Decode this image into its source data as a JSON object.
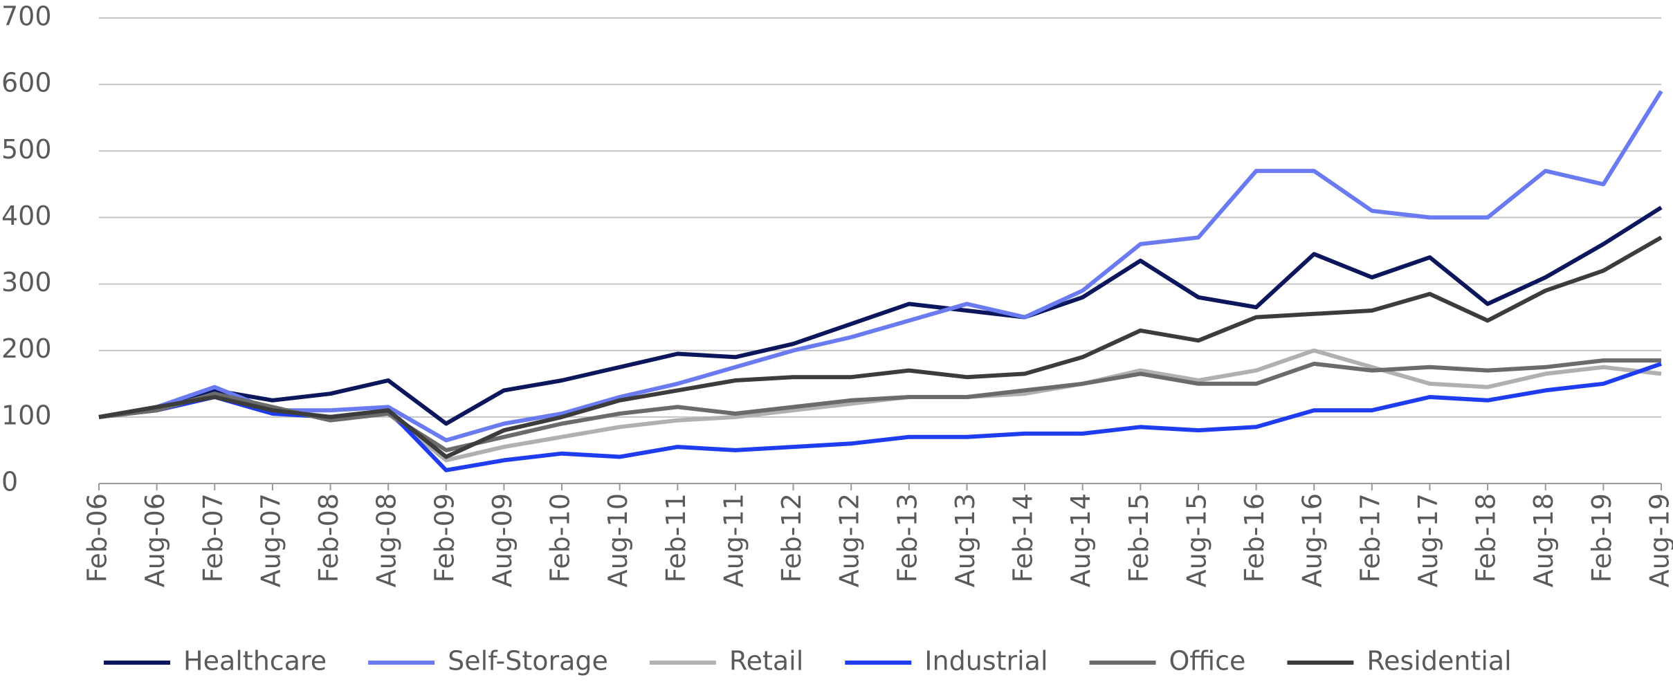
{
  "chart_data": {
    "type": "line",
    "categories": [
      "Feb-06",
      "Aug-06",
      "Feb-07",
      "Aug-07",
      "Feb-08",
      "Aug-08",
      "Feb-09",
      "Aug-09",
      "Feb-10",
      "Aug-10",
      "Feb-11",
      "Aug-11",
      "Feb-12",
      "Aug-12",
      "Feb-13",
      "Aug-13",
      "Feb-14",
      "Aug-14",
      "Feb-15",
      "Aug-15",
      "Feb-16",
      "Aug-16",
      "Feb-17",
      "Aug-17",
      "Feb-18",
      "Aug-18",
      "Feb-19",
      "Aug-19"
    ],
    "series": [
      {
        "name": "Healthcare",
        "color": "#0c165c",
        "values": [
          100,
          115,
          140,
          125,
          135,
          155,
          90,
          140,
          155,
          175,
          195,
          190,
          210,
          240,
          270,
          260,
          250,
          280,
          335,
          280,
          265,
          345,
          310,
          340,
          270,
          310,
          360,
          415
        ]
      },
      {
        "name": "Self-Storage",
        "color": "#6a7af0",
        "values": [
          100,
          115,
          145,
          110,
          110,
          115,
          65,
          90,
          105,
          130,
          150,
          175,
          200,
          220,
          245,
          270,
          250,
          290,
          360,
          370,
          470,
          470,
          410,
          400,
          400,
          470,
          450,
          590
        ]
      },
      {
        "name": "Retail",
        "color": "#b0b0b0",
        "values": [
          100,
          110,
          135,
          110,
          100,
          105,
          35,
          55,
          70,
          85,
          95,
          100,
          110,
          120,
          130,
          130,
          135,
          150,
          170,
          155,
          170,
          200,
          175,
          150,
          145,
          165,
          175,
          165
        ]
      },
      {
        "name": "Industrial",
        "color": "#1e3cf0",
        "values": [
          100,
          110,
          130,
          105,
          100,
          110,
          20,
          35,
          45,
          40,
          55,
          50,
          55,
          60,
          70,
          70,
          75,
          75,
          85,
          80,
          85,
          110,
          110,
          130,
          125,
          140,
          150,
          180
        ]
      },
      {
        "name": "Office",
        "color": "#6b6b6b",
        "values": [
          100,
          110,
          135,
          115,
          95,
          105,
          50,
          70,
          90,
          105,
          115,
          105,
          115,
          125,
          130,
          130,
          140,
          150,
          165,
          150,
          150,
          180,
          170,
          175,
          170,
          175,
          185,
          185
        ]
      },
      {
        "name": "Residential",
        "color": "#3c3c3c",
        "values": [
          100,
          115,
          130,
          110,
          100,
          110,
          40,
          80,
          100,
          125,
          140,
          155,
          160,
          160,
          170,
          160,
          165,
          190,
          230,
          215,
          250,
          255,
          260,
          285,
          245,
          290,
          320,
          370
        ]
      }
    ],
    "ylim": [
      0,
      700
    ],
    "yticks": [
      0,
      100,
      200,
      300,
      400,
      500,
      600,
      700
    ],
    "grid": true,
    "legend": "bottom"
  }
}
